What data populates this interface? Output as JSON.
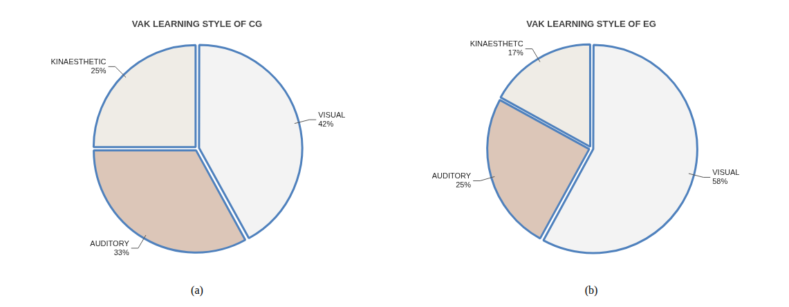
{
  "chart_data": [
    {
      "type": "pie",
      "title": "VAK LEARNING STYLE OF CG",
      "caption": "(a)",
      "categories": [
        "VISUAL",
        "AUDITORY",
        "KINAESTHETIC"
      ],
      "values": [
        42,
        33,
        25
      ],
      "value_labels": [
        "42%",
        "33%",
        "25%"
      ],
      "colors": [
        "#f3f3f3",
        "#dcc6b8",
        "#efece6"
      ],
      "data_labels": true
    },
    {
      "type": "pie",
      "title": "VAK LEARNING STYLE OF EG",
      "caption": "(b)",
      "categories": [
        "VISUAL",
        "AUDITORY",
        "KINAESTHETC"
      ],
      "values": [
        58,
        25,
        17
      ],
      "value_labels": [
        "58%",
        "25%",
        "17%"
      ],
      "colors": [
        "#f3f3f3",
        "#dcc6b8",
        "#efece6"
      ],
      "data_labels": true
    }
  ]
}
